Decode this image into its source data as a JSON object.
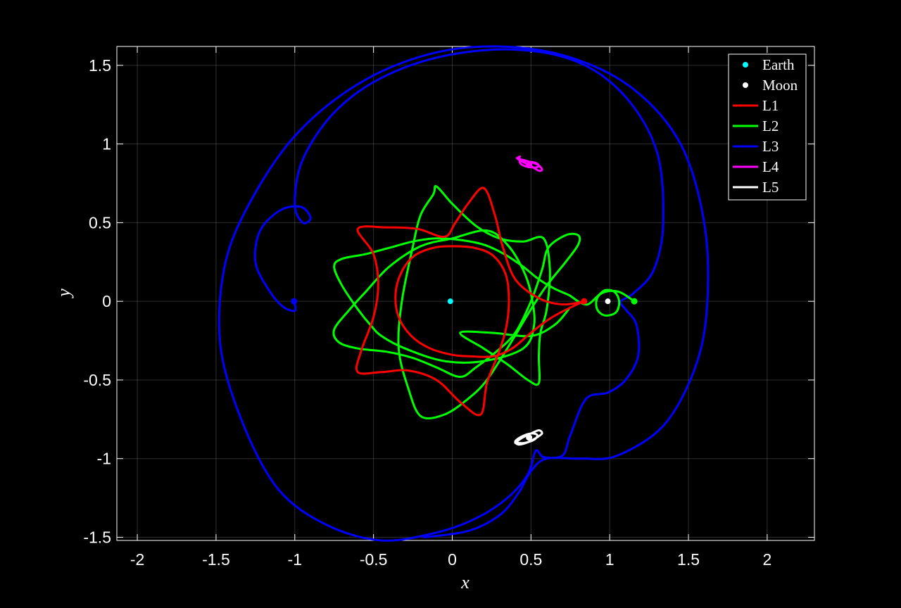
{
  "chart_data": {
    "type": "line",
    "xlabel": "x",
    "ylabel": "y",
    "xlim": [
      -2.13,
      2.3
    ],
    "ylim": [
      -1.52,
      1.62
    ],
    "xticks": [
      -2,
      -1.5,
      -1,
      -0.5,
      0,
      0.5,
      1,
      1.5,
      2
    ],
    "xtick_labels": [
      "-2",
      "-1.5",
      "-1",
      "-0.5",
      "0",
      "0.5",
      "1",
      "1.5",
      "2"
    ],
    "yticks": [
      -1.5,
      -1,
      -0.5,
      0,
      0.5,
      1,
      1.5
    ],
    "ytick_labels": [
      "-1.5",
      "-1",
      "-0.5",
      "0",
      "0.5",
      "1",
      "1.5"
    ],
    "grid": true,
    "background": "#000000",
    "foreground": "#ffffff",
    "legend": {
      "placement": "top-right",
      "entries": [
        {
          "label": "Earth",
          "kind": "marker",
          "color": "#00ffff"
        },
        {
          "label": "Moon",
          "kind": "marker",
          "color": "#ffffff"
        },
        {
          "label": "L1",
          "kind": "line",
          "color": "#ff0000"
        },
        {
          "label": "L2",
          "kind": "line",
          "color": "#00ff00"
        },
        {
          "label": "L3",
          "kind": "line",
          "color": "#0000ff"
        },
        {
          "label": "L4",
          "kind": "line",
          "color": "#ff00ff"
        },
        {
          "label": "L5",
          "kind": "line",
          "color": "#ffffff"
        }
      ]
    },
    "bodies": [
      {
        "name": "Earth",
        "x": -0.012,
        "y": 0,
        "color": "#00ffff"
      },
      {
        "name": "Moon",
        "x": 0.988,
        "y": 0,
        "color": "#ffffff"
      }
    ],
    "lagrange_points": [
      {
        "name": "L1",
        "x": 0.837,
        "y": 0,
        "color": "#ff0000"
      },
      {
        "name": "L2",
        "x": 1.156,
        "y": 0,
        "color": "#00ff00"
      },
      {
        "name": "L3",
        "x": -1.005,
        "y": 0,
        "color": "#0000ff"
      },
      {
        "name": "L4",
        "x": 0.488,
        "y": 0.866,
        "color": "#ff00ff"
      },
      {
        "name": "L5",
        "x": 0.488,
        "y": -0.866,
        "color": "#ffffff"
      }
    ],
    "series": [
      {
        "name": "L1",
        "color": "#ff0000",
        "points": [
          [
            0.837,
            0
          ],
          [
            0.74,
            -0.045
          ],
          [
            0.62,
            -0.11
          ],
          [
            0.5,
            -0.2
          ],
          [
            0.38,
            -0.3
          ],
          [
            0.26,
            -0.35
          ],
          [
            0.12,
            -0.35
          ],
          [
            0,
            -0.34
          ],
          [
            -0.14,
            -0.3
          ],
          [
            -0.26,
            -0.22
          ],
          [
            -0.34,
            -0.1
          ],
          [
            -0.36,
            0.05
          ],
          [
            -0.32,
            0.19
          ],
          [
            -0.24,
            0.29
          ],
          [
            -0.12,
            0.34
          ],
          [
            0,
            0.35
          ],
          [
            0.14,
            0.34
          ],
          [
            0.26,
            0.29
          ],
          [
            0.34,
            0.17
          ],
          [
            0.36,
            0
          ],
          [
            0.34,
            -0.18
          ],
          [
            0.29,
            -0.34
          ],
          [
            0.22,
            -0.52
          ],
          [
            0.18,
            -0.72
          ],
          [
            0.05,
            -0.64
          ],
          [
            -0.1,
            -0.5
          ],
          [
            -0.28,
            -0.44
          ],
          [
            -0.45,
            -0.45
          ],
          [
            -0.6,
            -0.45
          ],
          [
            -0.58,
            -0.32
          ],
          [
            -0.5,
            -0.1
          ],
          [
            -0.47,
            0.1
          ],
          [
            -0.5,
            0.3
          ],
          [
            -0.6,
            0.46
          ],
          [
            -0.42,
            0.47
          ],
          [
            -0.22,
            0.46
          ],
          [
            -0.05,
            0.41
          ],
          [
            0.02,
            0.5
          ],
          [
            0.1,
            0.62
          ],
          [
            0.2,
            0.72
          ],
          [
            0.27,
            0.55
          ],
          [
            0.32,
            0.35
          ],
          [
            0.4,
            0.14
          ],
          [
            0.55,
            0.02
          ],
          [
            0.7,
            -0.02
          ],
          [
            0.837,
            0
          ]
        ]
      },
      {
        "name": "L2",
        "color": "#00ff00",
        "points": [
          [
            1.156,
            0
          ],
          [
            1.06,
            0.06
          ],
          [
            0.97,
            0.06
          ],
          [
            0.92,
            0.02
          ],
          [
            0.92,
            -0.05
          ],
          [
            0.97,
            -0.09
          ],
          [
            1.04,
            -0.07
          ],
          [
            1.06,
            0
          ],
          [
            1.03,
            0.06
          ],
          [
            0.97,
            0.07
          ],
          [
            0.92,
            0.03
          ],
          [
            0.86,
            -0.02
          ],
          [
            0.8,
            0
          ],
          [
            0.74,
            0.04
          ],
          [
            0.65,
            0.08
          ],
          [
            0.55,
            0.14
          ],
          [
            0.45,
            0.22
          ],
          [
            0.33,
            0.3
          ],
          [
            0.2,
            0.36
          ],
          [
            0.05,
            0.39
          ],
          [
            -0.1,
            0.4
          ],
          [
            -0.25,
            0.38
          ],
          [
            -0.4,
            0.34
          ],
          [
            -0.55,
            0.3
          ],
          [
            -0.7,
            0.27
          ],
          [
            -0.75,
            0.22
          ],
          [
            -0.7,
            0.1
          ],
          [
            -0.6,
            -0.05
          ],
          [
            -0.52,
            -0.15
          ],
          [
            -0.45,
            -0.22
          ],
          [
            -0.3,
            -0.3
          ],
          [
            -0.05,
            -0.38
          ],
          [
            0.2,
            -0.38
          ],
          [
            0.45,
            -0.3
          ],
          [
            0.52,
            -0.15
          ],
          [
            0.5,
            0.05
          ],
          [
            0.45,
            0.2
          ],
          [
            0.35,
            0.36
          ],
          [
            0.22,
            0.45
          ],
          [
            0,
            0.4
          ],
          [
            -0.2,
            0.35
          ],
          [
            -0.4,
            0.22
          ],
          [
            -0.55,
            0.06
          ],
          [
            -0.65,
            -0.05
          ],
          [
            -0.75,
            -0.18
          ],
          [
            -0.72,
            -0.26
          ],
          [
            -0.6,
            -0.3
          ],
          [
            -0.42,
            -0.32
          ],
          [
            -0.25,
            -0.36
          ],
          [
            -0.1,
            -0.42
          ],
          [
            0.05,
            -0.48
          ],
          [
            0.15,
            -0.42
          ],
          [
            0.28,
            -0.32
          ],
          [
            0.4,
            -0.2
          ],
          [
            0.5,
            0
          ],
          [
            0.57,
            0.2
          ],
          [
            0.61,
            0.34
          ],
          [
            0.72,
            0.42
          ],
          [
            0.8,
            0.42
          ],
          [
            0.8,
            0.36
          ],
          [
            0.72,
            0.25
          ],
          [
            0.6,
            0.1
          ],
          [
            0.5,
            -0.05
          ],
          [
            0.38,
            -0.25
          ],
          [
            0.22,
            -0.5
          ],
          [
            0.1,
            -0.62
          ],
          [
            -0.05,
            -0.72
          ],
          [
            -0.2,
            -0.73
          ],
          [
            -0.28,
            -0.55
          ],
          [
            -0.34,
            -0.3
          ],
          [
            -0.32,
            0
          ],
          [
            -0.25,
            0.35
          ],
          [
            -0.2,
            0.55
          ],
          [
            -0.12,
            0.68
          ],
          [
            -0.1,
            0.73
          ],
          [
            0,
            0.62
          ],
          [
            0.15,
            0.48
          ],
          [
            0.3,
            0.4
          ],
          [
            0.45,
            0.38
          ],
          [
            0.58,
            0.4
          ],
          [
            0.62,
            0.2
          ],
          [
            0.6,
            -0.05
          ],
          [
            0.56,
            -0.2
          ],
          [
            0.55,
            -0.35
          ],
          [
            0.55,
            -0.52
          ],
          [
            0.48,
            -0.5
          ],
          [
            0.35,
            -0.4
          ],
          [
            0.2,
            -0.3
          ],
          [
            0.05,
            -0.2
          ],
          [
            0.25,
            -0.2
          ],
          [
            0.5,
            -0.22
          ],
          [
            0.65,
            -0.15
          ],
          [
            0.74,
            -0.05
          ]
        ]
      },
      {
        "name": "L3",
        "color": "#0000ff",
        "points": [
          [
            -1.005,
            0
          ],
          [
            -1.0,
            -0.06
          ],
          [
            -1.08,
            -0.03
          ],
          [
            -1.17,
            0.08
          ],
          [
            -1.25,
            0.25
          ],
          [
            -1.22,
            0.45
          ],
          [
            -1.09,
            0.58
          ],
          [
            -0.96,
            0.6
          ],
          [
            -0.9,
            0.53
          ],
          [
            -0.95,
            0.5
          ],
          [
            -1.0,
            0.62
          ],
          [
            -0.95,
            0.9
          ],
          [
            -0.75,
            1.2
          ],
          [
            -0.45,
            1.42
          ],
          [
            -0.05,
            1.56
          ],
          [
            0.4,
            1.6
          ],
          [
            0.8,
            1.52
          ],
          [
            1.1,
            1.3
          ],
          [
            1.3,
            0.95
          ],
          [
            1.34,
            0.5
          ],
          [
            1.28,
            0.2
          ],
          [
            1.15,
            0.05
          ],
          [
            1.07,
            0
          ],
          [
            1.1,
            -0.05
          ],
          [
            1.17,
            -0.15
          ],
          [
            1.18,
            -0.35
          ],
          [
            1.1,
            -0.5
          ],
          [
            0.99,
            -0.58
          ],
          [
            0.85,
            -0.62
          ],
          [
            0.75,
            -0.85
          ],
          [
            0.7,
            -0.98
          ],
          [
            0.58,
            -0.99
          ],
          [
            0.53,
            -0.95
          ],
          [
            0.48,
            -1.1
          ],
          [
            0.35,
            -1.25
          ],
          [
            0.15,
            -1.38
          ],
          [
            -0.1,
            -1.47
          ],
          [
            -0.45,
            -1.52
          ],
          [
            -0.8,
            -1.42
          ],
          [
            -1.1,
            -1.2
          ],
          [
            -1.32,
            -0.8
          ],
          [
            -1.47,
            -0.3
          ],
          [
            -1.45,
            0.2
          ],
          [
            -1.3,
            0.6
          ],
          [
            -1.0,
            1.05
          ],
          [
            -0.6,
            1.38
          ],
          [
            -0.15,
            1.57
          ],
          [
            0.3,
            1.62
          ],
          [
            0.75,
            1.55
          ],
          [
            1.15,
            1.35
          ],
          [
            1.45,
            1.0
          ],
          [
            1.6,
            0.5
          ],
          [
            1.62,
            0
          ],
          [
            1.55,
            -0.4
          ],
          [
            1.35,
            -0.78
          ],
          [
            1.05,
            -0.98
          ],
          [
            0.82,
            -1.0
          ],
          [
            0.6,
            -1.0
          ],
          [
            0.5,
            -1.08
          ],
          [
            0.42,
            -1.22
          ],
          [
            0.3,
            -1.36
          ],
          [
            0.1,
            -1.46
          ],
          [
            -0.18,
            -1.5
          ]
        ]
      },
      {
        "name": "L4",
        "color": "#ff00ff",
        "points": [
          [
            0.41,
            0.91
          ],
          [
            0.44,
            0.89
          ],
          [
            0.5,
            0.86
          ],
          [
            0.55,
            0.83
          ],
          [
            0.57,
            0.84
          ],
          [
            0.54,
            0.87
          ],
          [
            0.48,
            0.89
          ],
          [
            0.44,
            0.9
          ],
          [
            0.43,
            0.88
          ],
          [
            0.46,
            0.86
          ],
          [
            0.52,
            0.85
          ],
          [
            0.55,
            0.86
          ],
          [
            0.53,
            0.88
          ],
          [
            0.47,
            0.89
          ],
          [
            0.42,
            0.91
          ],
          [
            0.43,
            0.92
          ]
        ]
      },
      {
        "name": "L5",
        "color": "#ffffff",
        "points": [
          [
            0.4,
            -0.9
          ],
          [
            0.44,
            -0.87
          ],
          [
            0.5,
            -0.84
          ],
          [
            0.55,
            -0.82
          ],
          [
            0.57,
            -0.84
          ],
          [
            0.53,
            -0.87
          ],
          [
            0.47,
            -0.9
          ],
          [
            0.42,
            -0.91
          ],
          [
            0.4,
            -0.89
          ],
          [
            0.44,
            -0.86
          ],
          [
            0.5,
            -0.84
          ],
          [
            0.54,
            -0.85
          ],
          [
            0.52,
            -0.88
          ],
          [
            0.46,
            -0.9
          ],
          [
            0.41,
            -0.9
          ]
        ]
      }
    ]
  }
}
